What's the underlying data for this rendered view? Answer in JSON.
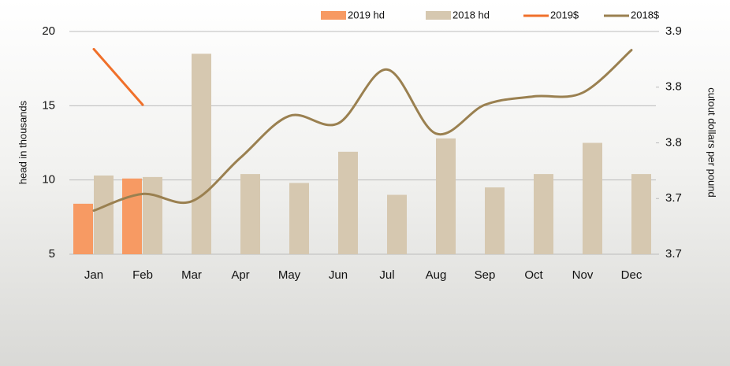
{
  "chart_data": {
    "type": "bar-line",
    "categories": [
      "Jan",
      "Feb",
      "Mar",
      "Apr",
      "May",
      "Jun",
      "Jul",
      "Aug",
      "Sep",
      "Oct",
      "Nov",
      "Dec"
    ],
    "y_label": "head in thousands",
    "y2_label": "cutout dollars per pound",
    "ylim": [
      5,
      20
    ],
    "yticks": [
      5,
      10,
      15,
      20
    ],
    "y2lim": [
      3.66,
      3.9
    ],
    "y2ticks": [
      {
        "value": 3.66,
        "label": "3.7"
      },
      {
        "value": 3.72,
        "label": "3.7"
      },
      {
        "value": 3.78,
        "label": "3.8"
      },
      {
        "value": 3.84,
        "label": "3.8"
      },
      {
        "value": 3.9,
        "label": "3.9"
      }
    ],
    "grid": true,
    "series": [
      {
        "name": "2019 hd",
        "kind": "bar",
        "color": "#f79a63",
        "values": [
          8.4,
          10.1,
          null,
          null,
          null,
          null,
          null,
          null,
          null,
          null,
          null,
          null
        ]
      },
      {
        "name": "2018 hd",
        "kind": "bar",
        "color": "#d6c8b0",
        "values": [
          10.3,
          10.2,
          18.5,
          10.4,
          9.8,
          11.9,
          9.0,
          12.8,
          9.5,
          10.4,
          12.5,
          10.4
        ]
      },
      {
        "name": "2019$",
        "kind": "line",
        "axis": "y2",
        "color": "#f0702a",
        "values": [
          3.881,
          3.821,
          null,
          null,
          null,
          null,
          null,
          null,
          null,
          null,
          null,
          null
        ]
      },
      {
        "name": "2018$",
        "kind": "line",
        "axis": "y2",
        "color": "#9a8050",
        "values": [
          3.707,
          3.725,
          3.717,
          3.764,
          3.809,
          3.801,
          3.859,
          3.79,
          3.821,
          3.83,
          3.834,
          3.88
        ]
      }
    ]
  }
}
